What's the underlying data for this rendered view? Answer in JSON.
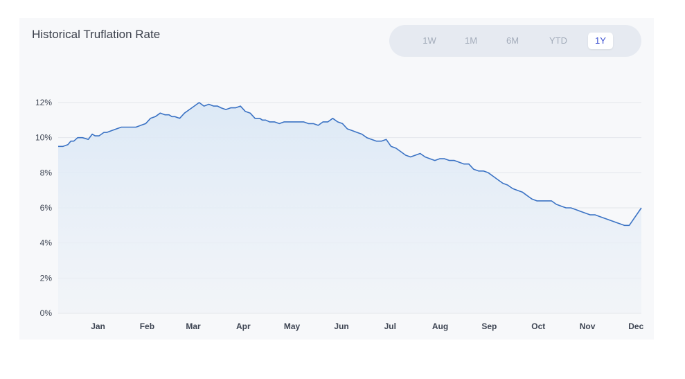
{
  "title": "Historical Truflation Rate",
  "range_buttons": [
    {
      "label": "1W",
      "active": false
    },
    {
      "label": "1M",
      "active": false
    },
    {
      "label": "6M",
      "active": false
    },
    {
      "label": "YTD",
      "active": false
    },
    {
      "label": "1Y",
      "active": true
    }
  ],
  "colors": {
    "line": "#3a72c4",
    "fill_top": "#dbe8f6",
    "grid": "#e3e6eb",
    "active_text": "#3a4fd1"
  },
  "chart_data": {
    "type": "area",
    "title": "Historical Truflation Rate",
    "xlabel": "",
    "ylabel": "",
    "ylim": [
      0,
      12
    ],
    "yticks": [
      0,
      2,
      4,
      6,
      8,
      10,
      12
    ],
    "ytick_labels": [
      "0%",
      "2%",
      "4%",
      "6%",
      "8%",
      "10%",
      "12%"
    ],
    "xlim": [
      0,
      12
    ],
    "month_ticks": [
      0.82,
      1.83,
      2.78,
      3.81,
      4.81,
      5.83,
      6.83,
      7.86,
      8.87,
      9.88,
      10.89,
      11.89
    ],
    "month_labels": [
      "Jan",
      "Feb",
      "Mar",
      "Apr",
      "May",
      "Jun",
      "Jul",
      "Aug",
      "Sep",
      "Oct",
      "Nov",
      "Dec"
    ],
    "grid": true,
    "legend": "none",
    "series": [
      {
        "x": [
          0.0,
          0.1,
          0.2,
          0.26,
          0.32,
          0.4,
          0.5,
          0.62,
          0.7,
          0.76,
          0.84,
          0.94,
          1.0,
          1.1,
          1.2,
          1.3,
          1.4,
          1.5,
          1.6,
          1.7,
          1.8,
          1.9,
          2.0,
          2.1,
          2.2,
          2.28,
          2.34,
          2.4,
          2.5,
          2.6,
          2.7,
          2.8,
          2.9,
          3.0,
          3.1,
          3.2,
          3.28,
          3.35,
          3.45,
          3.55,
          3.65,
          3.75,
          3.85,
          3.95,
          4.05,
          4.15,
          4.2,
          4.27,
          4.35,
          4.45,
          4.55,
          4.65,
          4.75,
          4.85,
          4.95,
          5.05,
          5.15,
          5.25,
          5.35,
          5.45,
          5.55,
          5.65,
          5.75,
          5.85,
          5.95,
          6.05,
          6.15,
          6.25,
          6.35,
          6.45,
          6.55,
          6.65,
          6.75,
          6.85,
          6.95,
          7.05,
          7.15,
          7.25,
          7.35,
          7.45,
          7.55,
          7.65,
          7.75,
          7.85,
          7.95,
          8.05,
          8.15,
          8.25,
          8.35,
          8.45,
          8.55,
          8.65,
          8.75,
          8.85,
          8.95,
          9.05,
          9.15,
          9.25,
          9.35,
          9.45,
          9.55,
          9.65,
          9.75,
          9.85,
          9.95,
          10.05,
          10.15,
          10.25,
          10.35,
          10.45,
          10.55,
          10.65,
          10.75,
          10.85,
          10.95,
          11.05,
          11.15,
          11.25,
          11.35,
          11.45,
          11.55,
          11.65,
          11.75,
          11.85,
          11.95,
          12.0
        ],
        "y": [
          9.5,
          9.5,
          9.6,
          9.8,
          9.8,
          10.0,
          10.0,
          9.9,
          10.2,
          10.1,
          10.1,
          10.3,
          10.3,
          10.4,
          10.5,
          10.6,
          10.6,
          10.6,
          10.6,
          10.7,
          10.8,
          11.1,
          11.2,
          11.4,
          11.3,
          11.3,
          11.2,
          11.2,
          11.1,
          11.4,
          11.6,
          11.8,
          12.0,
          11.8,
          11.9,
          11.8,
          11.8,
          11.7,
          11.6,
          11.7,
          11.7,
          11.8,
          11.5,
          11.4,
          11.1,
          11.1,
          11.0,
          11.0,
          10.9,
          10.9,
          10.8,
          10.9,
          10.9,
          10.9,
          10.9,
          10.9,
          10.8,
          10.8,
          10.7,
          10.9,
          10.9,
          11.1,
          10.9,
          10.8,
          10.5,
          10.4,
          10.3,
          10.2,
          10.0,
          9.9,
          9.8,
          9.8,
          9.9,
          9.5,
          9.4,
          9.2,
          9.0,
          8.9,
          9.0,
          9.1,
          8.9,
          8.8,
          8.7,
          8.8,
          8.8,
          8.7,
          8.7,
          8.6,
          8.5,
          8.5,
          8.2,
          8.1,
          8.1,
          8.0,
          7.8,
          7.6,
          7.4,
          7.3,
          7.1,
          7.0,
          6.9,
          6.7,
          6.5,
          6.4,
          6.4,
          6.4,
          6.4,
          6.2,
          6.1,
          6.0,
          6.0,
          5.9,
          5.8,
          5.7,
          5.6,
          5.6,
          5.5,
          5.4,
          5.3,
          5.2,
          5.1,
          5.0,
          5.0,
          5.0,
          6.0,
          6.0
        ]
      }
    ]
  }
}
